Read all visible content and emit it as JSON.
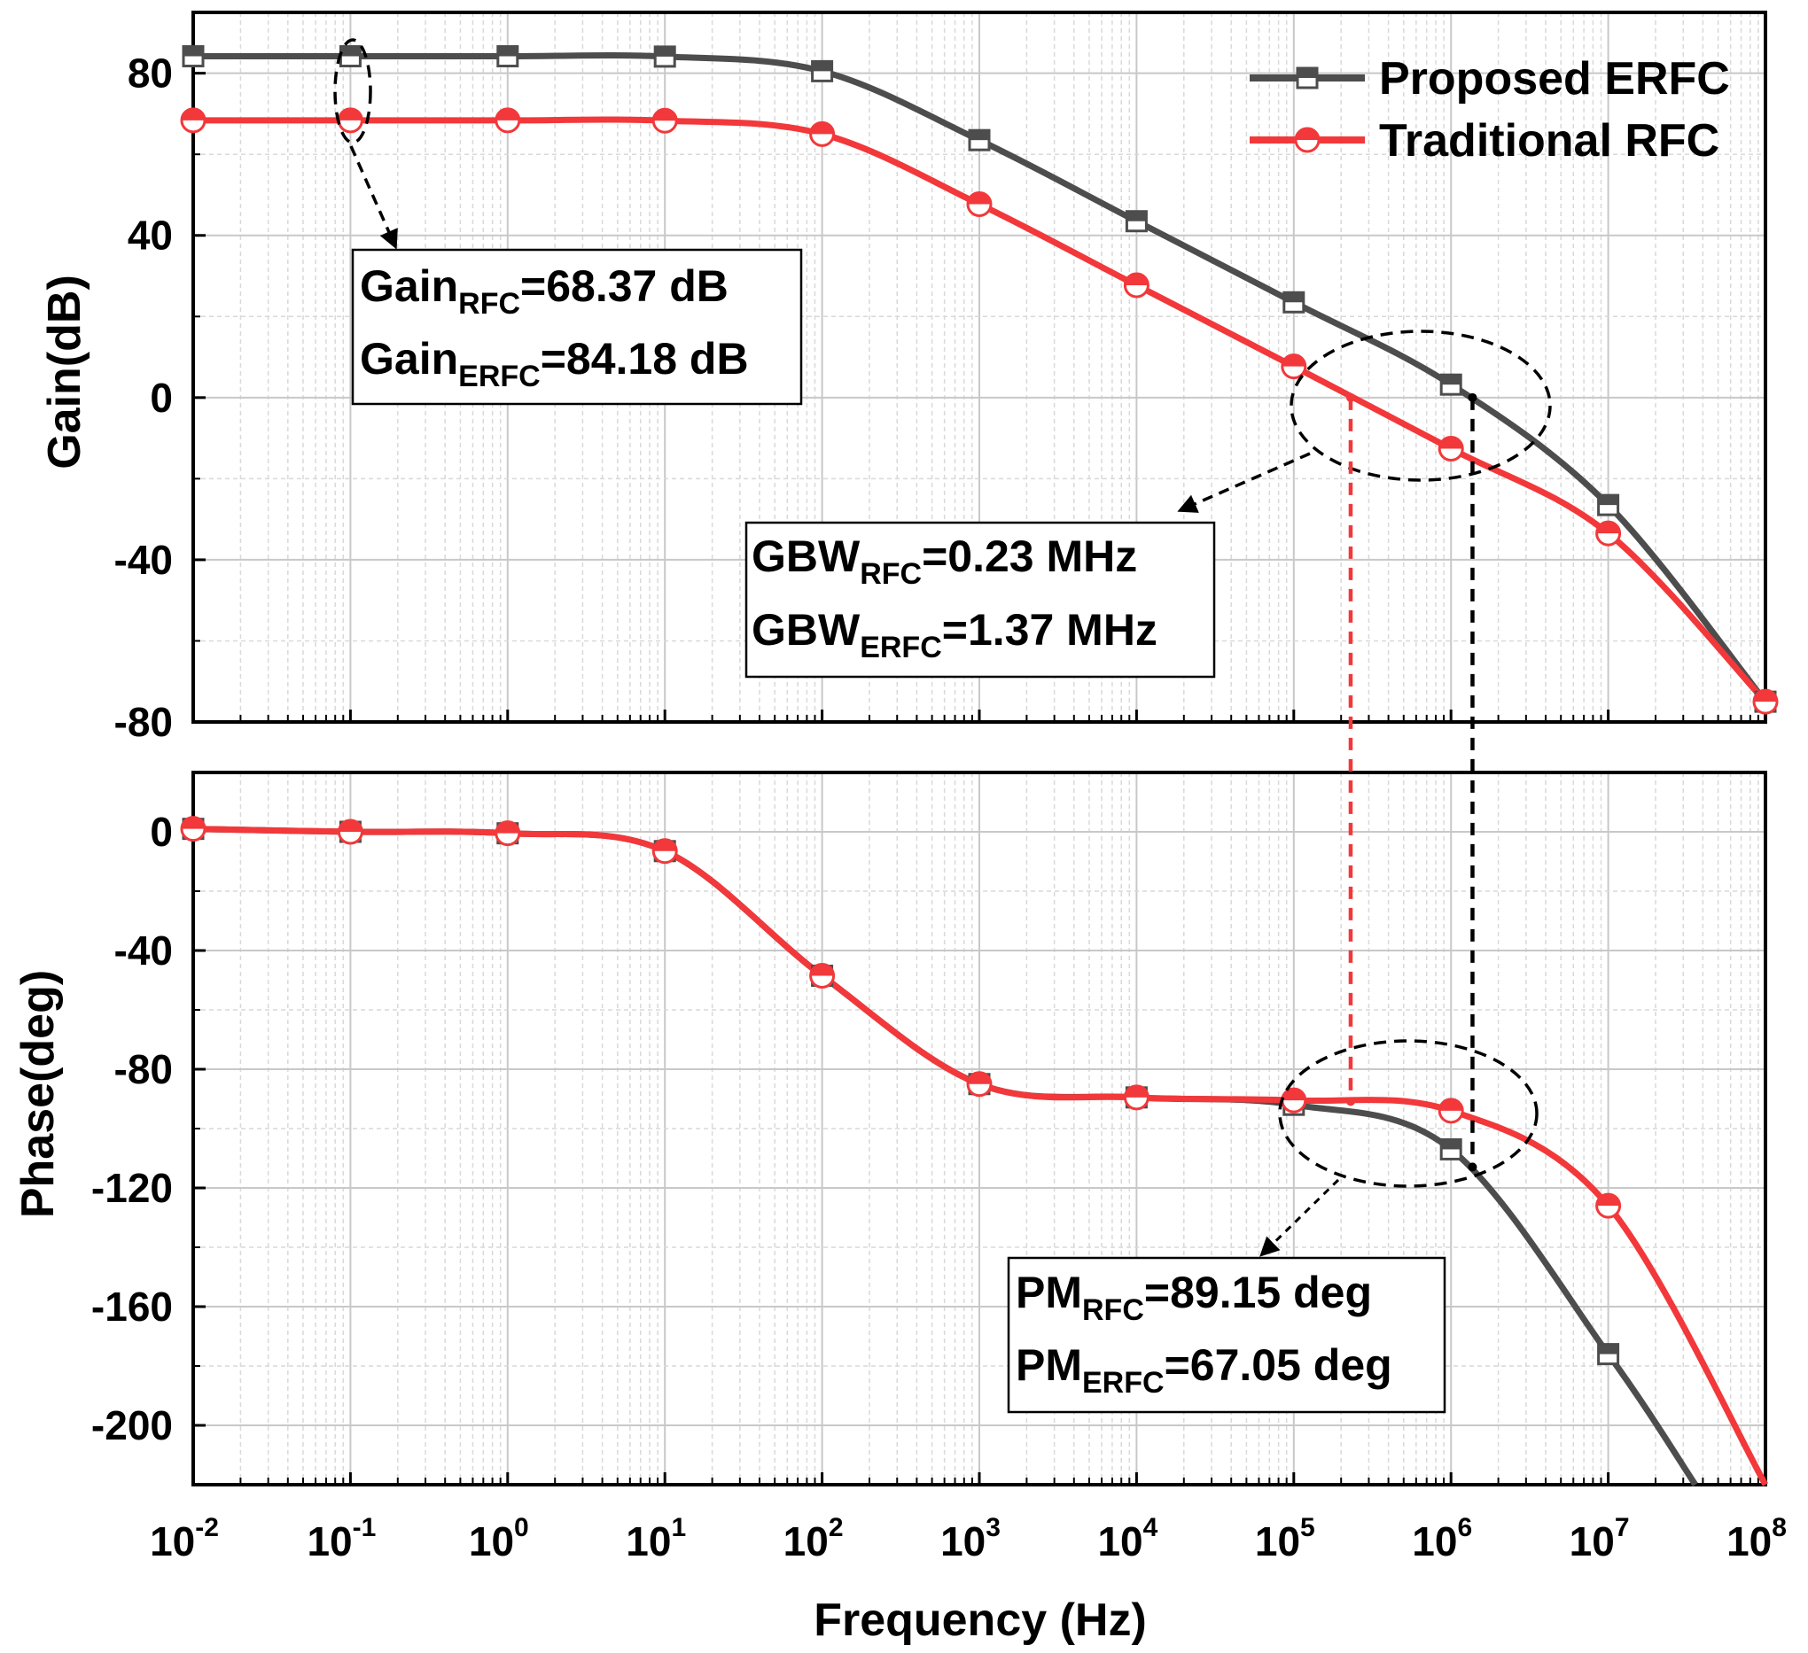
{
  "colors": {
    "erfc": "#4d4d4d",
    "rfc": "#f2383a"
  },
  "chart_data": [
    {
      "type": "line",
      "panel": "gain",
      "ylabel": "Gain(dB)",
      "xscale": "log",
      "xlim": [
        0.01,
        100000000
      ],
      "ylim": [
        -80,
        95
      ],
      "yticks": [
        80,
        40,
        0,
        -40,
        -80
      ],
      "ytick_labels": [
        "80",
        "40",
        "0",
        "-40",
        "-80"
      ],
      "grid": true,
      "legend": "top-right",
      "series": [
        {
          "name": "Proposed ERFC",
          "marker": "half-filled-square",
          "x": [
            0.01,
            0.1,
            1,
            10,
            100,
            1000,
            10000,
            100000,
            1000000,
            10000000,
            100000000
          ],
          "values": [
            84.18,
            84.18,
            84.18,
            84.1,
            80.5,
            63.5,
            43.5,
            23.5,
            3.2,
            -26.5,
            -75
          ]
        },
        {
          "name": "Traditional RFC",
          "marker": "half-filled-circle",
          "x": [
            0.01,
            0.1,
            1,
            10,
            100,
            1000,
            10000,
            100000,
            1000000,
            10000000,
            100000000
          ],
          "values": [
            68.37,
            68.37,
            68.37,
            68.3,
            65,
            47.7,
            27.7,
            7.7,
            -12.6,
            -33.5,
            -75
          ]
        }
      ]
    },
    {
      "type": "line",
      "panel": "phase",
      "ylabel": "Phase(deg)",
      "xlabel": "Frequency (Hz)",
      "xscale": "log",
      "xlim": [
        0.01,
        100000000
      ],
      "ylim": [
        -220,
        20
      ],
      "yticks": [
        0,
        -40,
        -80,
        -120,
        -160,
        -200
      ],
      "ytick_labels": [
        "0",
        "-40",
        "-80",
        "-120",
        "-160",
        "-200"
      ],
      "xtick_bases": [
        "10",
        "10",
        "10",
        "10",
        "10",
        "10",
        "10",
        "10",
        "10",
        "10",
        "10"
      ],
      "xtick_exponents": [
        "-2",
        "-1",
        "0",
        "1",
        "2",
        "3",
        "4",
        "5",
        "6",
        "7",
        "8"
      ],
      "grid": true,
      "series": [
        {
          "name": "Proposed ERFC",
          "x": [
            0.01,
            0.1,
            1,
            10,
            100,
            1000,
            10000,
            100000,
            1000000,
            10000000
          ],
          "values": [
            1,
            0,
            -0.5,
            -6.5,
            -48.5,
            -85,
            -89.5,
            -92,
            -107,
            -176
          ]
        },
        {
          "name": "Traditional RFC",
          "x": [
            0.01,
            0.1,
            1,
            10,
            100,
            1000,
            10000,
            100000,
            1000000,
            10000000
          ],
          "values": [
            1,
            0,
            -0.5,
            -6.5,
            -48.5,
            -85,
            -89.5,
            -90.5,
            -94,
            -126
          ]
        }
      ]
    }
  ],
  "annotations": {
    "gain_box": {
      "line1": {
        "main": "Gain",
        "sub": "RFC",
        "value": "=68.37 dB"
      },
      "line2": {
        "main": "Gain",
        "sub": "ERFC",
        "value": "=84.18 dB"
      }
    },
    "gbw_box": {
      "line1": {
        "main": "GBW",
        "sub": "RFC",
        "value": "=0.23 MHz"
      },
      "line2": {
        "main": "GBW",
        "sub": "ERFC",
        "value": "=1.37 MHz"
      }
    },
    "pm_box": {
      "line1": {
        "main": "PM",
        "sub": "RFC",
        "value": "=89.15 deg"
      },
      "line2": {
        "main": "PM",
        "sub": "ERFC",
        "value": "=67.05 deg"
      }
    },
    "gbw_markers": {
      "rfc_hz": 230000,
      "erfc_hz": 1370000
    }
  }
}
